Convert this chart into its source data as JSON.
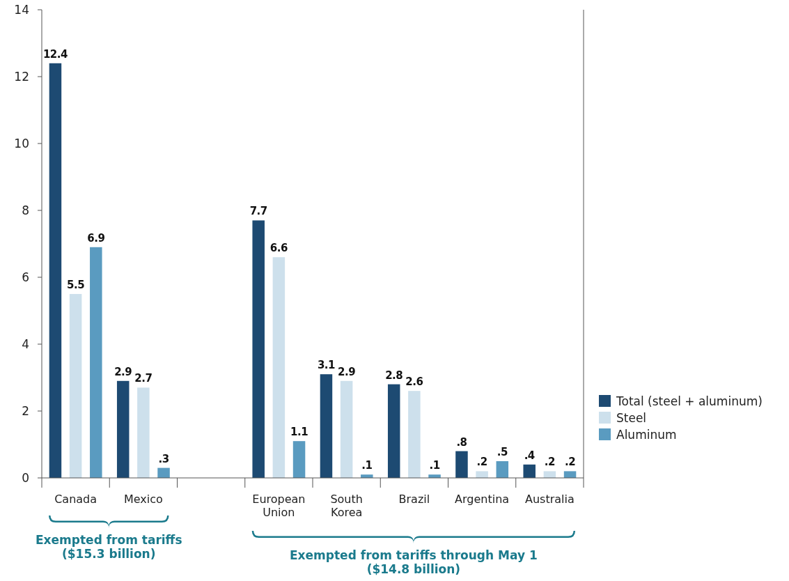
{
  "chart_data": {
    "type": "bar",
    "categories": [
      "Canada",
      "Mexico",
      null,
      "European Union",
      "South Korea",
      "Brazil",
      "Argentina",
      "Australia"
    ],
    "series": [
      {
        "name": "Total (steel + aluminum)",
        "color": "#1d4a72",
        "values": [
          12.4,
          2.9,
          null,
          7.7,
          3.1,
          2.8,
          0.8,
          0.4
        ],
        "value_labels": [
          "12.4",
          "2.9",
          null,
          "7.7",
          "3.1",
          "2.8",
          ".8",
          ".4"
        ]
      },
      {
        "name": "Steel",
        "color": "#cde0ec",
        "values": [
          5.5,
          2.7,
          null,
          6.6,
          2.9,
          2.6,
          0.2,
          0.2
        ],
        "value_labels": [
          "5.5",
          "2.7",
          null,
          "6.6",
          "2.9",
          "2.6",
          ".2",
          ".2"
        ]
      },
      {
        "name": "Aluminum",
        "color": "#5a9bc0",
        "values": [
          6.9,
          0.3,
          null,
          1.1,
          0.1,
          0.1,
          0.5,
          0.2
        ],
        "value_labels": [
          "6.9",
          ".3",
          null,
          "1.1",
          ".1",
          ".1",
          ".5",
          ".2"
        ]
      }
    ],
    "ylim": [
      0,
      14
    ],
    "yticks": [
      0,
      2,
      4,
      6,
      8,
      10,
      12,
      14
    ],
    "grid": false,
    "legend": "right",
    "annotations": [
      "Exempted from tariffs\n($15.3 billion)",
      "Exempted from tariffs through May 1\n($14.8 billion)"
    ]
  }
}
